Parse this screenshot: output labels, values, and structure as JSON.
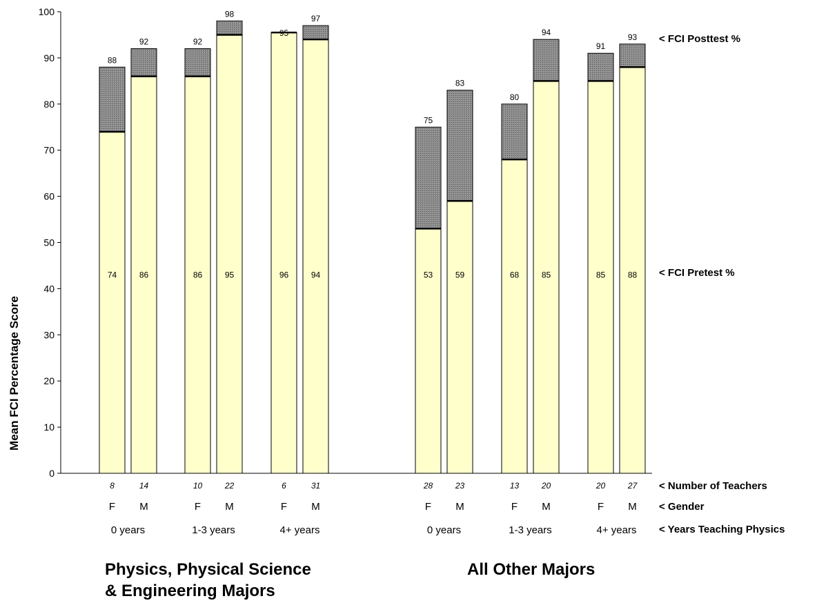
{
  "chart_data": {
    "type": "bar",
    "stacked": true,
    "ylabel": "Mean FCI Percentage Score",
    "ylim": [
      0,
      100
    ],
    "yticks": [
      0,
      10,
      20,
      30,
      40,
      50,
      60,
      70,
      80,
      90,
      100
    ],
    "grid": false,
    "colors": {
      "pretest": "#ffffcc",
      "gain": "#8a8a8a",
      "outline": "#000000"
    },
    "row_labels": {
      "posttest": "< FCI Posttest %",
      "pretest": "< FCI Pretest %",
      "teachers": "< Number of Teachers",
      "gender": "< Gender",
      "years": "< Years Teaching Physics"
    },
    "groups": [
      {
        "title_line1": "Physics, Physical Science",
        "title_line2": "& Engineering Majors"
      },
      {
        "title_line1": "All Other Majors",
        "title_line2": ""
      }
    ],
    "bars": [
      {
        "group": 0,
        "years": "0 years",
        "gender": "F",
        "teachers": "8",
        "pretest": 74,
        "posttest": 88,
        "pre_label": "74",
        "post_label": "88"
      },
      {
        "group": 0,
        "years": "0 years",
        "gender": "M",
        "teachers": "14",
        "pretest": 86,
        "posttest": 92,
        "pre_label": "86",
        "post_label": "92"
      },
      {
        "group": 0,
        "years": "1-3 years",
        "gender": "F",
        "teachers": "10",
        "pretest": 86,
        "posttest": 92,
        "pre_label": "86",
        "post_label": "92"
      },
      {
        "group": 0,
        "years": "1-3 years",
        "gender": "M",
        "teachers": "22",
        "pretest": 95,
        "posttest": 98,
        "pre_label": "95",
        "post_label": "98"
      },
      {
        "group": 0,
        "years": "4+ years",
        "gender": "F",
        "teachers": "6",
        "pretest": 95.5,
        "posttest": 95.2,
        "pre_label": "96",
        "post_label": "95"
      },
      {
        "group": 0,
        "years": "4+ years",
        "gender": "M",
        "teachers": "31",
        "pretest": 94,
        "posttest": 97,
        "pre_label": "94",
        "post_label": "97"
      },
      {
        "group": 1,
        "years": "0 years",
        "gender": "F",
        "teachers": "28",
        "pretest": 53,
        "posttest": 75,
        "pre_label": "53",
        "post_label": "75"
      },
      {
        "group": 1,
        "years": "0 years",
        "gender": "M",
        "teachers": "23",
        "pretest": 59,
        "posttest": 83,
        "pre_label": "59",
        "post_label": "83"
      },
      {
        "group": 1,
        "years": "1-3 years",
        "gender": "F",
        "teachers": "13",
        "pretest": 68,
        "posttest": 80,
        "pre_label": "68",
        "post_label": "80"
      },
      {
        "group": 1,
        "years": "1-3 years",
        "gender": "M",
        "teachers": "20",
        "pretest": 85,
        "posttest": 94,
        "pre_label": "85",
        "post_label": "94"
      },
      {
        "group": 1,
        "years": "4+ years",
        "gender": "F",
        "teachers": "20",
        "pretest": 85,
        "posttest": 91,
        "pre_label": "85",
        "post_label": "91"
      },
      {
        "group": 1,
        "years": "4+ years",
        "gender": "M",
        "teachers": "27",
        "pretest": 88,
        "posttest": 93,
        "pre_label": "88",
        "post_label": "93"
      }
    ]
  }
}
